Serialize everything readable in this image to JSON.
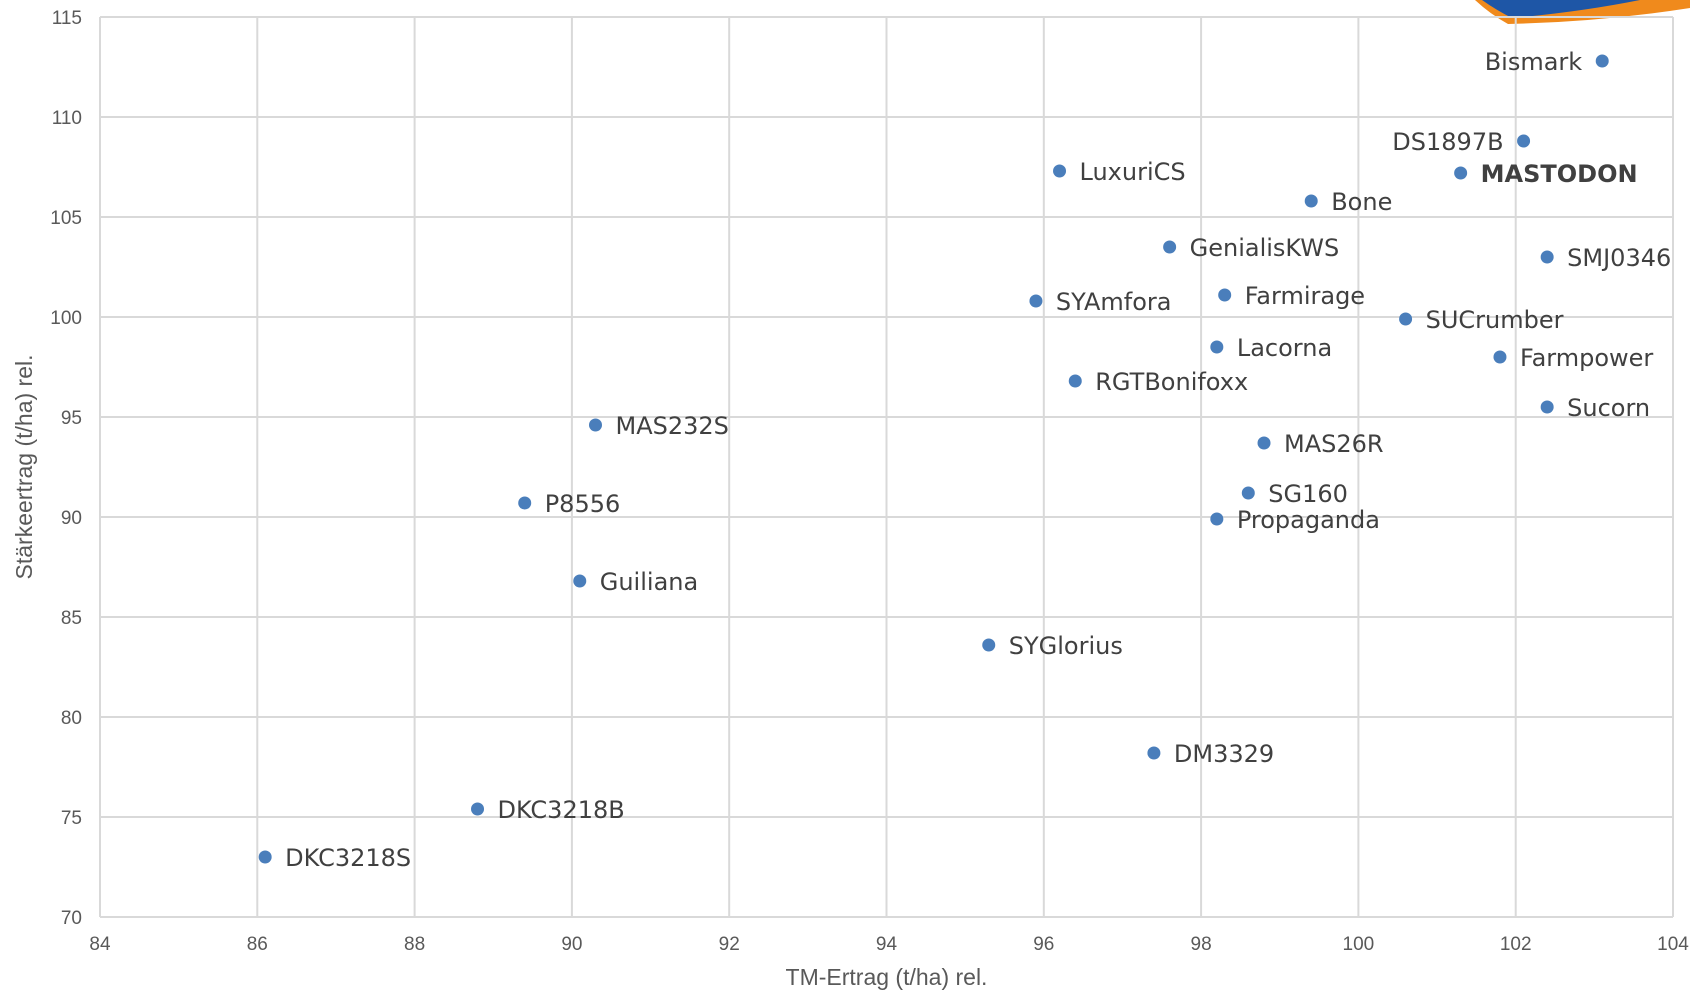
{
  "chart_data": {
    "type": "scatter",
    "title": "",
    "xlabel": "TM-Ertrag (t/ha) rel.",
    "ylabel": "Stärkeertrag (t/ha) rel.",
    "xlim": [
      84,
      104
    ],
    "ylim": [
      70,
      115
    ],
    "x_ticks": [
      "84",
      "86",
      "88",
      "90",
      "92",
      "94",
      "96",
      "98",
      "100",
      "102",
      "104"
    ],
    "y_ticks": [
      "70",
      "75",
      "80",
      "85",
      "90",
      "95",
      "100",
      "105",
      "110",
      "115"
    ],
    "grid": true,
    "legend": "none",
    "marker_color": "#4a7ebb",
    "points": [
      {
        "label": "Bismark",
        "x": 103.1,
        "y": 112.8,
        "label_side": "left"
      },
      {
        "label": "DS1897B",
        "x": 102.1,
        "y": 108.8,
        "label_side": "left"
      },
      {
        "label": "MASTODON",
        "x": 101.3,
        "y": 107.2,
        "label_side": "right",
        "bold": true
      },
      {
        "label": "LuxuriCS",
        "x": 96.2,
        "y": 107.3,
        "label_side": "right"
      },
      {
        "label": "Bone",
        "x": 99.4,
        "y": 105.8,
        "label_side": "right"
      },
      {
        "label": "GenialisKWS",
        "x": 97.6,
        "y": 103.5,
        "label_side": "right"
      },
      {
        "label": "SMJ0346",
        "x": 102.4,
        "y": 103.0,
        "label_side": "right"
      },
      {
        "label": "Farmirage",
        "x": 98.3,
        "y": 101.1,
        "label_side": "right"
      },
      {
        "label": "SYAmfora",
        "x": 95.9,
        "y": 100.8,
        "label_side": "right"
      },
      {
        "label": "SUCrumber",
        "x": 100.6,
        "y": 99.9,
        "label_side": "right"
      },
      {
        "label": "Lacorna",
        "x": 98.2,
        "y": 98.5,
        "label_side": "right"
      },
      {
        "label": "Farmpower",
        "x": 101.8,
        "y": 98.0,
        "label_side": "right"
      },
      {
        "label": "RGTBonifoxx",
        "x": 96.4,
        "y": 96.8,
        "label_side": "right"
      },
      {
        "label": "Sucorn",
        "x": 102.4,
        "y": 95.5,
        "label_side": "right"
      },
      {
        "label": "MAS232S",
        "x": 90.3,
        "y": 94.6,
        "label_side": "right"
      },
      {
        "label": "MAS26R",
        "x": 98.8,
        "y": 93.7,
        "label_side": "right"
      },
      {
        "label": "SG160",
        "x": 98.6,
        "y": 91.2,
        "label_side": "right"
      },
      {
        "label": "P8556",
        "x": 89.4,
        "y": 90.7,
        "label_side": "right"
      },
      {
        "label": "Propaganda",
        "x": 98.2,
        "y": 89.9,
        "label_side": "right"
      },
      {
        "label": "Guiliana",
        "x": 90.1,
        "y": 86.8,
        "label_side": "right"
      },
      {
        "label": "SYGlorius",
        "x": 95.3,
        "y": 83.6,
        "label_side": "right"
      },
      {
        "label": "DM3329",
        "x": 97.4,
        "y": 78.2,
        "label_side": "right"
      },
      {
        "label": "DKC3218B",
        "x": 88.8,
        "y": 75.4,
        "label_side": "right"
      },
      {
        "label": "DKC3218S",
        "x": 86.1,
        "y": 73.0,
        "label_side": "right"
      }
    ]
  }
}
